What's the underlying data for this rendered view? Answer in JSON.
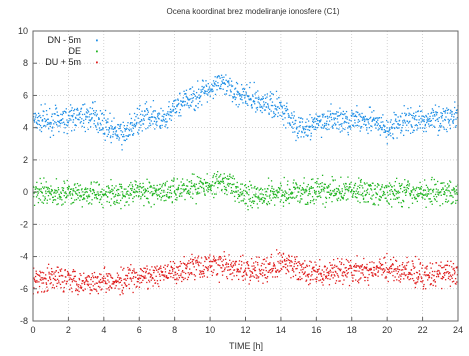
{
  "chart_data": {
    "type": "scatter",
    "title": "Ocena koordinat brez modeliranje ionosfere (C1)",
    "xlabel": "TIME [h]",
    "ylabel": "",
    "xlim": [
      0,
      24
    ],
    "ylim": [
      -8,
      10
    ],
    "x_ticks": [
      0,
      2,
      4,
      6,
      8,
      10,
      12,
      14,
      16,
      18,
      20,
      22,
      24
    ],
    "y_ticks": [
      -8,
      -6,
      -4,
      -2,
      0,
      2,
      4,
      6,
      8,
      10
    ],
    "grid": true,
    "legend_position": "top-left",
    "noise_half_amplitude": 0.55,
    "series": [
      {
        "name": "DN - 5m",
        "color": "#1f8fe6",
        "x": [
          0,
          1,
          2,
          3,
          3.5,
          4.5,
          5,
          5.5,
          6,
          6.5,
          7,
          7.5,
          8,
          9,
          10,
          10.5,
          11,
          12,
          13,
          14,
          15,
          15.5,
          16,
          17,
          18,
          19,
          20,
          21,
          22,
          23,
          24
        ],
        "y": [
          4.6,
          4.4,
          4.6,
          4.7,
          4.7,
          3.8,
          3.5,
          4.0,
          4.4,
          4.8,
          4.6,
          4.3,
          5.3,
          5.8,
          6.5,
          6.8,
          6.4,
          6.0,
          5.5,
          5.3,
          4.0,
          3.9,
          4.3,
          4.5,
          4.4,
          4.5,
          3.8,
          4.4,
          4.5,
          4.6,
          4.7
        ]
      },
      {
        "name": "DE",
        "color": "#22b522",
        "x": [
          0,
          2,
          4,
          6,
          8,
          9,
          10,
          11,
          12,
          13,
          14,
          16,
          18,
          20,
          22,
          24
        ],
        "y": [
          -0.1,
          0.0,
          -0.1,
          0.0,
          0.1,
          0.3,
          0.4,
          0.5,
          -0.2,
          -0.1,
          0.0,
          0.0,
          0.1,
          -0.1,
          0.0,
          0.0
        ]
      },
      {
        "name": "DU + 5m",
        "color": "#e01f1f",
        "x": [
          0,
          1,
          2,
          3,
          4,
          5,
          6,
          7,
          8,
          9,
          10,
          11,
          12,
          13,
          14,
          15,
          16,
          17,
          18,
          19,
          20,
          21,
          22,
          23,
          24
        ],
        "y": [
          -5.5,
          -5.4,
          -5.3,
          -5.6,
          -5.4,
          -5.6,
          -5.3,
          -5.2,
          -4.9,
          -4.6,
          -4.5,
          -4.6,
          -4.8,
          -4.9,
          -4.4,
          -4.7,
          -5.1,
          -5.0,
          -4.9,
          -4.9,
          -4.7,
          -4.9,
          -5.2,
          -5.0,
          -5.1
        ]
      }
    ]
  }
}
